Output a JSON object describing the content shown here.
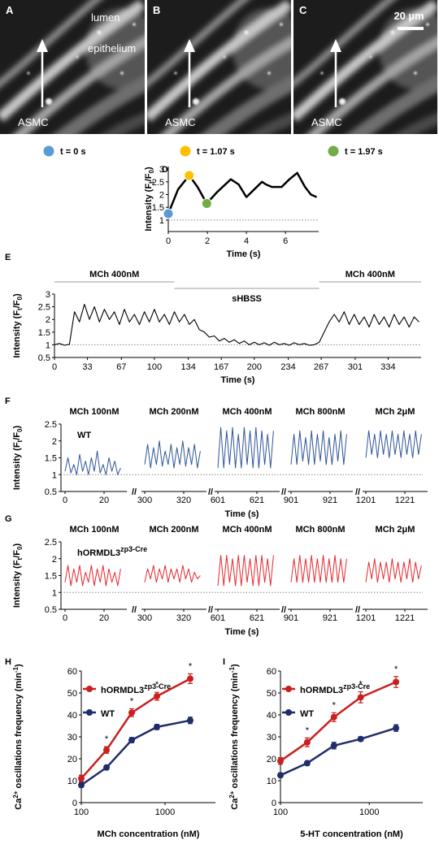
{
  "images": [
    {
      "panel": "A",
      "labels": [
        "lumen",
        "epithelium",
        "ASMC"
      ]
    },
    {
      "panel": "B",
      "labels": [
        "ASMC"
      ]
    },
    {
      "panel": "C",
      "labels": [
        "ASMC"
      ],
      "scale_bar": "20 µm"
    }
  ],
  "chart_data": [
    {
      "type": "line",
      "panel": "D",
      "ylabel": [
        "Intensity (F",
        "t",
        "/F",
        "0",
        ")"
      ],
      "xlabel": "Time (s)",
      "x": [
        0,
        0.5,
        1.07,
        1.5,
        1.97,
        2.5,
        3.2,
        3.6,
        4.0,
        4.4,
        4.8,
        5.0,
        5.3,
        5.8,
        6.2,
        6.6,
        7.0,
        7.3,
        7.6
      ],
      "values": [
        1.25,
        2.2,
        2.75,
        2.3,
        1.65,
        2.1,
        2.6,
        2.4,
        1.9,
        2.2,
        2.5,
        2.4,
        2.3,
        2.3,
        2.6,
        2.85,
        2.3,
        2.0,
        1.9
      ],
      "color": "#000000",
      "baseline": 1,
      "highlights": [
        {
          "x": 0,
          "value": 1.25,
          "color": "#5b9bd5",
          "label": "t = 0 s"
        },
        {
          "x": 1.07,
          "value": 2.75,
          "color": "#ffc000",
          "label": "t = 1.07 s"
        },
        {
          "x": 1.97,
          "value": 1.65,
          "color": "#70ad47",
          "label": "t = 1.97 s"
        }
      ],
      "xlim": [
        0,
        7.7
      ],
      "ylim": [
        0.55,
        3.1
      ],
      "xticks": [
        0,
        2,
        4,
        6
      ],
      "yticks": [
        1,
        1.5,
        2,
        2.5,
        3
      ]
    },
    {
      "type": "line",
      "panel": "E",
      "ylabel": [
        "Intensity (F",
        "t",
        "/F",
        "0",
        ")"
      ],
      "xlabel": "Time (s)",
      "x": [
        0,
        5,
        10,
        15,
        20,
        25,
        30,
        35,
        40,
        45,
        50,
        55,
        60,
        65,
        70,
        75,
        80,
        85,
        90,
        95,
        100,
        105,
        110,
        115,
        120,
        125,
        130,
        135,
        140,
        145,
        150,
        155,
        160,
        165,
        170,
        175,
        180,
        185,
        190,
        195,
        200,
        205,
        210,
        215,
        220,
        225,
        230,
        235,
        240,
        245,
        250,
        255,
        260,
        265,
        270,
        275,
        280,
        285,
        290,
        295,
        300,
        305,
        310,
        315,
        320,
        325,
        330,
        335,
        340,
        345,
        350,
        355,
        360,
        365
      ],
      "values": [
        1.0,
        1.05,
        0.98,
        1.02,
        2.3,
        1.9,
        2.6,
        2.0,
        2.5,
        1.9,
        2.4,
        2.0,
        2.3,
        1.8,
        2.4,
        1.9,
        2.2,
        1.8,
        2.3,
        1.9,
        2.4,
        1.9,
        2.2,
        1.8,
        2.3,
        1.9,
        2.2,
        1.8,
        2.0,
        1.6,
        1.5,
        1.3,
        1.35,
        1.15,
        1.25,
        1.1,
        1.2,
        1.05,
        1.15,
        1.0,
        1.1,
        1.0,
        1.08,
        0.98,
        1.1,
        1.0,
        1.05,
        0.98,
        1.08,
        1.0,
        1.05,
        0.98,
        1.0,
        1.1,
        1.5,
        1.9,
        2.2,
        1.9,
        2.3,
        1.8,
        2.2,
        1.8,
        2.1,
        1.7,
        2.2,
        1.8,
        2.1,
        1.7,
        2.2,
        1.8,
        2.1,
        1.7,
        2.1,
        1.9
      ],
      "color": "#000000",
      "baseline": 1,
      "periods": [
        {
          "label": "MCh 400nM",
          "start": 0,
          "end": 120
        },
        {
          "label": "sHBSS",
          "start": 120,
          "end": 265
        },
        {
          "label": "MCh 400nM",
          "start": 265,
          "end": 367
        }
      ],
      "xlim": [
        0,
        367
      ],
      "ylim": [
        0.5,
        3
      ],
      "xticks": [
        0,
        33,
        67,
        100,
        134,
        167,
        200,
        234,
        267,
        301,
        334
      ],
      "yticks": [
        0.5,
        1,
        1.5,
        2,
        2.5,
        3
      ]
    },
    {
      "type": "line",
      "panel": "F",
      "label": "WT",
      "ylabel": [
        "Intensity (F",
        "t",
        "/F",
        "0",
        ")"
      ],
      "xlabel": "Time (s)",
      "color": "#2f5597",
      "baseline": 1,
      "axis_break": "//",
      "ylim": [
        0.5,
        2.5
      ],
      "yticks": [
        0.5,
        1,
        1.5,
        2,
        2.5
      ],
      "segments": [
        {
          "header": "MCh 100nM",
          "xlim": [
            0,
            30
          ],
          "xticks": [
            0,
            20
          ],
          "x": [
            0,
            1.5,
            3,
            4.5,
            6,
            7.5,
            9,
            10.5,
            12,
            13.5,
            15,
            16.5,
            18,
            19.5,
            21,
            22.5,
            24,
            25.5,
            27,
            28.5
          ],
          "values": [
            1.1,
            1.5,
            1.05,
            1.3,
            1.0,
            1.6,
            1.1,
            1.4,
            1.0,
            1.5,
            1.1,
            1.7,
            1.05,
            1.3,
            1.0,
            1.5,
            1.1,
            1.4,
            1.0,
            1.2
          ]
        },
        {
          "header": "MCh 200nM",
          "xlim": [
            300,
            330
          ],
          "xticks": [
            300,
            320
          ],
          "x": [
            300,
            301.5,
            303,
            304.5,
            306,
            307.5,
            309,
            310.5,
            312,
            313.5,
            315,
            316.5,
            318,
            319.5,
            321,
            322.5,
            324,
            325.5,
            327,
            328.5
          ],
          "values": [
            1.3,
            1.9,
            1.2,
            1.8,
            1.3,
            2.0,
            1.25,
            1.7,
            1.3,
            1.9,
            1.2,
            1.8,
            1.3,
            2.0,
            1.25,
            1.8,
            1.3,
            1.9,
            1.2,
            1.7
          ]
        },
        {
          "header": "MCh 400nM",
          "xlim": [
            601,
            631
          ],
          "xticks": [
            601,
            621
          ],
          "x": [
            601,
            602.5,
            604,
            605.5,
            607,
            608.5,
            610,
            611.5,
            613,
            614.5,
            616,
            617.5,
            619,
            620.5,
            622,
            623.5,
            625,
            626.5,
            628,
            629.5
          ],
          "values": [
            1.2,
            2.4,
            1.2,
            2.3,
            1.3,
            2.4,
            1.2,
            2.2,
            1.2,
            2.4,
            1.3,
            2.3,
            1.2,
            2.4,
            1.2,
            2.3,
            1.3,
            2.2,
            1.2,
            2.3
          ]
        },
        {
          "header": "MCh 800nM",
          "xlim": [
            901,
            931
          ],
          "xticks": [
            901,
            921
          ],
          "x": [
            901,
            902.5,
            904,
            905.5,
            907,
            908.5,
            910,
            911.5,
            913,
            914.5,
            916,
            917.5,
            919,
            920.5,
            922,
            923.5,
            925,
            926.5,
            928,
            929.5
          ],
          "values": [
            1.3,
            2.2,
            1.3,
            2.3,
            1.4,
            2.1,
            1.3,
            2.3,
            1.3,
            2.2,
            1.4,
            2.3,
            1.3,
            2.1,
            1.3,
            2.2,
            1.4,
            2.3,
            1.3,
            2.2
          ]
        },
        {
          "header": "MCh 2μM",
          "xlim": [
            1201,
            1231
          ],
          "xticks": [
            1201,
            1221
          ],
          "x": [
            1201,
            1202.5,
            1204,
            1205.5,
            1207,
            1208.5,
            1210,
            1211.5,
            1213,
            1214.5,
            1216,
            1217.5,
            1219,
            1220.5,
            1222,
            1223.5,
            1225,
            1226.5,
            1228,
            1229.5
          ],
          "values": [
            1.5,
            2.3,
            1.6,
            2.2,
            1.5,
            2.3,
            1.6,
            2.2,
            1.5,
            2.3,
            1.6,
            2.2,
            1.5,
            2.3,
            1.6,
            2.2,
            1.5,
            2.3,
            1.6,
            2.2
          ]
        }
      ]
    },
    {
      "type": "line",
      "panel": "G",
      "label": "hORMDL3",
      "label_sup": "zp3-Cre",
      "ylabel": [
        "Intensity (F",
        "t",
        "/F",
        "0",
        ")"
      ],
      "xlabel": "Time (s)",
      "color": "#e8262b",
      "baseline": 1,
      "axis_break": "//",
      "ylim": [
        0.5,
        2.5
      ],
      "yticks": [
        0.5,
        1,
        1.5,
        2,
        2.5
      ],
      "segments": [
        {
          "header": "MCh 100nM",
          "xlim": [
            0,
            30
          ],
          "xticks": [
            0,
            20
          ],
          "x": [
            0,
            1.5,
            3,
            4.5,
            6,
            7.5,
            9,
            10.5,
            12,
            13.5,
            15,
            16.5,
            18,
            19.5,
            21,
            22.5,
            24,
            25.5,
            27,
            28.5
          ],
          "values": [
            1.3,
            1.8,
            1.2,
            1.7,
            1.3,
            1.8,
            1.2,
            1.6,
            1.3,
            1.8,
            1.2,
            1.7,
            1.3,
            1.8,
            1.2,
            1.7,
            1.3,
            1.6,
            1.2,
            1.7
          ]
        },
        {
          "header": "MCh 200nM",
          "xlim": [
            300,
            330
          ],
          "xticks": [
            300,
            320
          ],
          "x": [
            300,
            301.5,
            303,
            304.5,
            306,
            307.5,
            309,
            310.5,
            312,
            313.5,
            315,
            316.5,
            318,
            319.5,
            321,
            322.5,
            324,
            325.5,
            327,
            328.5
          ],
          "values": [
            1.3,
            1.7,
            1.4,
            1.8,
            1.3,
            1.7,
            1.4,
            1.8,
            1.3,
            1.7,
            1.4,
            1.7,
            1.3,
            1.8,
            1.4,
            1.7,
            1.3,
            1.6,
            1.4,
            1.5
          ]
        },
        {
          "header": "MCh 400nM",
          "xlim": [
            601,
            631
          ],
          "xticks": [
            601,
            621
          ],
          "x": [
            601,
            602.5,
            604,
            605.5,
            607,
            608.5,
            610,
            611.5,
            613,
            614.5,
            616,
            617.5,
            619,
            620.5,
            622,
            623.5,
            625,
            626.5,
            628,
            629.5
          ],
          "values": [
            1.2,
            2.1,
            1.2,
            2.1,
            1.3,
            2.0,
            1.2,
            2.1,
            1.2,
            2.1,
            1.3,
            2.0,
            1.2,
            2.1,
            1.2,
            2.1,
            1.3,
            2.0,
            1.2,
            2.1
          ]
        },
        {
          "header": "MCh 800nM",
          "xlim": [
            901,
            931
          ],
          "xticks": [
            901,
            921
          ],
          "x": [
            901,
            902.5,
            904,
            905.5,
            907,
            908.5,
            910,
            911.5,
            913,
            914.5,
            916,
            917.5,
            919,
            920.5,
            922,
            923.5,
            925,
            926.5,
            928,
            929.5
          ],
          "values": [
            1.3,
            2.0,
            1.3,
            2.1,
            1.3,
            2.0,
            1.3,
            2.1,
            1.3,
            2.0,
            1.3,
            2.1,
            1.3,
            2.0,
            1.3,
            2.1,
            1.3,
            2.0,
            1.3,
            2.0
          ]
        },
        {
          "header": "MCh 2μM",
          "xlim": [
            1201,
            1231
          ],
          "xticks": [
            1201,
            1221
          ],
          "x": [
            1201,
            1202.5,
            1204,
            1205.5,
            1207,
            1208.5,
            1210,
            1211.5,
            1213,
            1214.5,
            1216,
            1217.5,
            1219,
            1220.5,
            1222,
            1223.5,
            1225,
            1226.5,
            1228,
            1229.5
          ],
          "values": [
            1.3,
            1.9,
            1.4,
            2.0,
            1.3,
            1.9,
            1.4,
            1.9,
            1.3,
            2.0,
            1.4,
            1.9,
            1.3,
            1.9,
            1.4,
            2.0,
            1.3,
            1.9,
            1.4,
            1.8
          ]
        }
      ]
    },
    {
      "type": "line",
      "panel": "H",
      "ylabel": [
        "Ca",
        "2+",
        " oscillations frequency (min",
        "-1",
        ")"
      ],
      "xlabel": "MCh concentration (nM)",
      "xlog": true,
      "x": [
        100,
        200,
        400,
        800,
        2000
      ],
      "xlim": [
        100,
        4000
      ],
      "xticks": [
        100,
        1000
      ],
      "ylim": [
        0,
        60
      ],
      "yticks": [
        0,
        10,
        20,
        30,
        40,
        50,
        60
      ],
      "series": [
        {
          "name": "hORMDL3",
          "name_sup": "zp3-Cre",
          "color": "#c8201f",
          "values": [
            11,
            24,
            41,
            48.5,
            56.5
          ],
          "errors": [
            1.5,
            1.5,
            1.8,
            1.8,
            2.2
          ]
        },
        {
          "name": "WT",
          "color": "#1f2d6b",
          "values": [
            8,
            16,
            28.5,
            34.5,
            37.5
          ],
          "errors": [
            1,
            1,
            1.2,
            1.2,
            1.5
          ]
        }
      ],
      "stars": [
        null,
        "*",
        "*",
        "*",
        "*"
      ]
    },
    {
      "type": "line",
      "panel": "I",
      "ylabel": [
        "Ca",
        "2+",
        " oscillations frequency (min",
        "-1",
        ")"
      ],
      "xlabel": "5-HT concentration (nM)",
      "xlog": true,
      "x": [
        100,
        200,
        400,
        800,
        2000
      ],
      "xlim": [
        100,
        4000
      ],
      "xticks": [
        100,
        1000
      ],
      "ylim": [
        0,
        60
      ],
      "yticks": [
        0,
        10,
        20,
        30,
        40,
        50,
        60
      ],
      "series": [
        {
          "name": "hORMDL3",
          "name_sup": "zp3-Cre",
          "color": "#c8201f",
          "values": [
            19,
            27.5,
            39,
            48,
            55
          ],
          "errors": [
            1.5,
            2,
            2,
            2.5,
            2.5
          ]
        },
        {
          "name": "WT",
          "color": "#1f2d6b",
          "values": [
            12.5,
            18,
            26,
            29,
            34
          ],
          "errors": [
            1,
            1,
            1.5,
            1,
            1.5
          ]
        }
      ],
      "stars": [
        null,
        "*",
        "*",
        "*",
        "*"
      ]
    }
  ]
}
